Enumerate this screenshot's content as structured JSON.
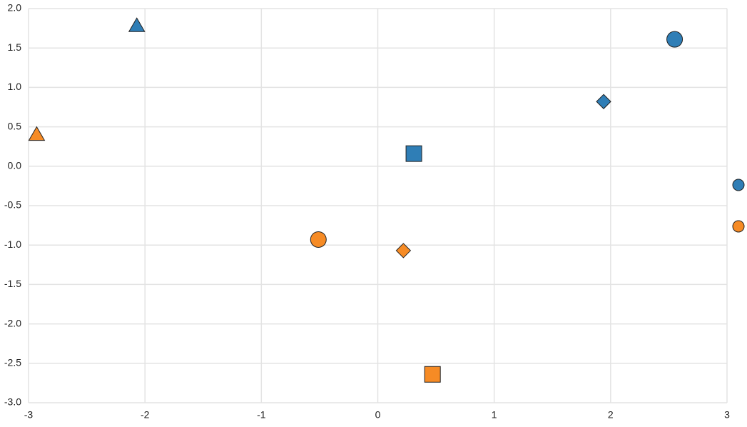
{
  "chart_data": {
    "type": "scatter",
    "series": [
      {
        "color": "#2f7eb6",
        "shapes": [
          "triangle",
          "circle",
          "diamond",
          "square"
        ],
        "x": [
          -2.07,
          2.55,
          1.94,
          0.31
        ],
        "values": [
          1.78,
          1.61,
          0.82,
          0.16
        ]
      },
      {
        "color": "#f68b25",
        "shapes": [
          "triangle",
          "circle",
          "diamond",
          "square"
        ],
        "x": [
          -2.93,
          -0.51,
          0.22,
          0.47
        ],
        "values": [
          0.4,
          -0.93,
          -1.07,
          -2.64
        ]
      }
    ],
    "xlim": [
      -3,
      3
    ],
    "xticks": [
      -3,
      -2,
      -1,
      0,
      1,
      2,
      3
    ],
    "ylim": [
      -3,
      2
    ],
    "yticks": [
      {
        "value": -3,
        "label": "-3.0"
      },
      -2.5,
      {
        "value": -2,
        "label": "-2.0"
      },
      -1.5,
      {
        "value": -1,
        "label": "-1.0"
      },
      -0.5,
      {
        "value": 0,
        "label": "0.0"
      },
      0.5,
      {
        "value": 1,
        "label": "1.0"
      },
      1.5,
      {
        "value": 2,
        "label": "2.0"
      }
    ],
    "grid": true
  }
}
